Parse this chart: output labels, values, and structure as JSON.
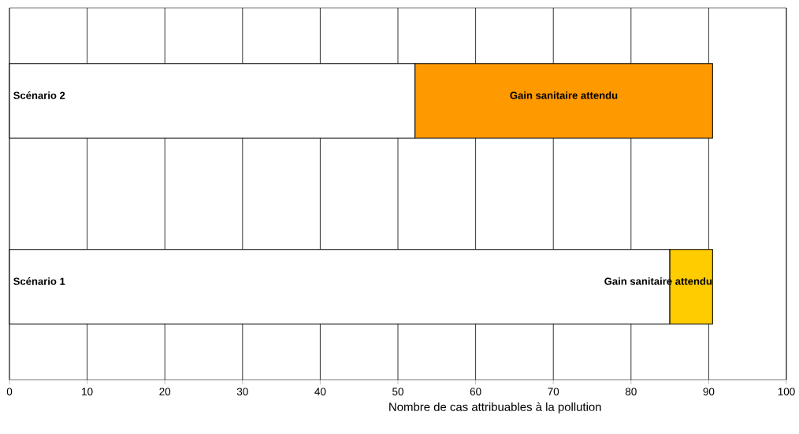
{
  "chart_data": {
    "type": "bar",
    "orientation": "horizontal",
    "stacked": true,
    "categories": [
      "Scénario 2",
      "Scénario 1"
    ],
    "series": [
      {
        "color": "#ffffff",
        "values": [
          52.2,
          85.0
        ]
      },
      {
        "colors": [
          "#ff9900",
          "#ffcc00"
        ],
        "values": [
          38.3,
          5.5
        ]
      }
    ],
    "xlabel": "Nombre de cas attribuables à la pollution",
    "xlim": [
      0,
      100
    ],
    "xticks": [
      0,
      10,
      20,
      30,
      40,
      50,
      60,
      70,
      80,
      90,
      100
    ],
    "grid": "x",
    "annotations": [
      "Gain sanitaire attendu",
      "Gain sanitaire attendu"
    ]
  }
}
